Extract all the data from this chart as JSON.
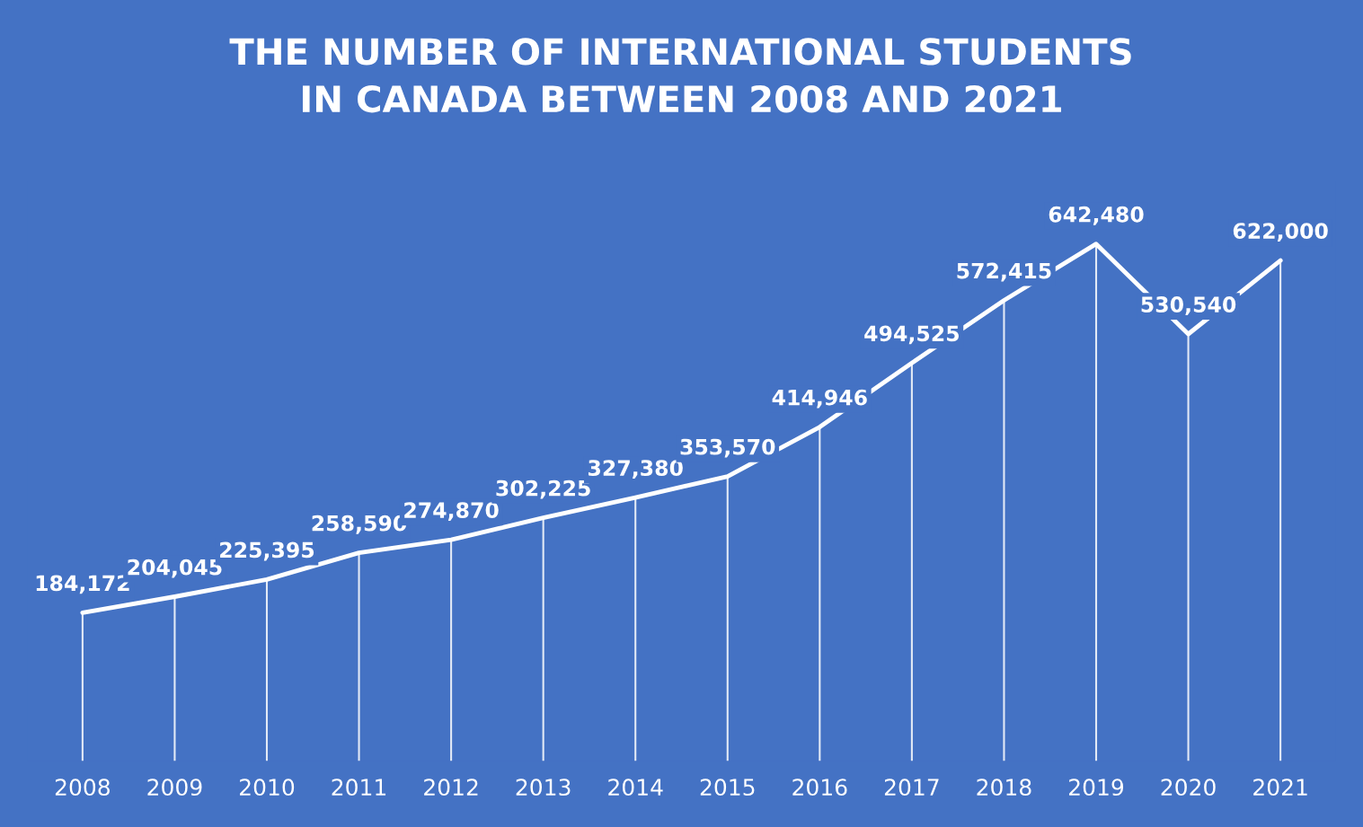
{
  "chart_data": {
    "type": "line",
    "title": "THE NUMBER OF INTERNATIONAL STUDENTS\nIN CANADA BETWEEN 2008 AND 2021",
    "categories": [
      "2008",
      "2009",
      "2010",
      "2011",
      "2012",
      "2013",
      "2014",
      "2015",
      "2016",
      "2017",
      "2018",
      "2019",
      "2020",
      "2021"
    ],
    "series": [
      {
        "color": "#ffffff",
        "values": [
          184172,
          204045,
          225395,
          258590,
          274870,
          302225,
          327380,
          353570,
          414946,
          494525,
          572415,
          642480,
          530540,
          622000
        ],
        "value_labels": [
          "184,172",
          "204,045",
          "225,395",
          "258,590",
          "274,870",
          "302,225",
          "327,380",
          "353,570",
          "414,946",
          "494,525",
          "572,415",
          "642,480",
          "530,540",
          "622,000"
        ]
      }
    ],
    "grid": "x",
    "marker": "none",
    "line_style": "solid"
  }
}
